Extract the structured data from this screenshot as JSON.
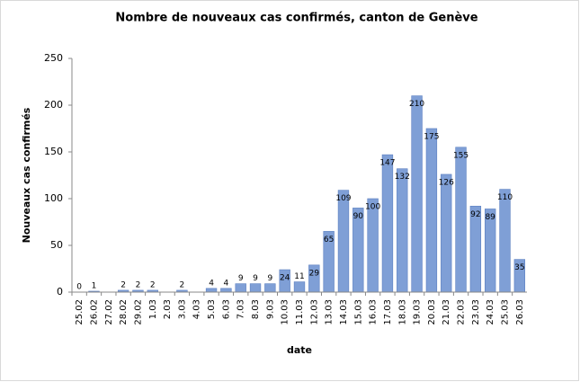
{
  "chart_data": {
    "type": "bar",
    "title": "Nombre de nouveaux cas confirmés, canton de Genève",
    "x_label": "date",
    "y_label": "Nouveaux cas confirmés",
    "categories": [
      "25.02",
      "26.02",
      "27.02",
      "28.02",
      "29.02",
      "1.03",
      "2.03",
      "3.03",
      "4.03",
      "5.03",
      "6.03",
      "7.03",
      "8.03",
      "9.03",
      "10.03",
      "11.03",
      "12.03",
      "13.03",
      "14.03",
      "15.03",
      "16.03",
      "17.03",
      "18.03",
      "19.03",
      "20.03",
      "21.03",
      "22.03",
      "23.03",
      "24.03",
      "25.03",
      "26.03"
    ],
    "values": [
      0,
      1,
      null,
      2,
      2,
      2,
      null,
      2,
      null,
      4,
      4,
      9,
      9,
      9,
      24,
      11,
      29,
      65,
      109,
      90,
      100,
      147,
      132,
      210,
      175,
      126,
      155,
      92,
      89,
      110,
      35
    ],
    "color": "#7f9fd6",
    "ylim": [
      0,
      250
    ],
    "yticks": [
      0,
      50,
      100,
      150,
      200,
      250
    ],
    "grid": false
  }
}
